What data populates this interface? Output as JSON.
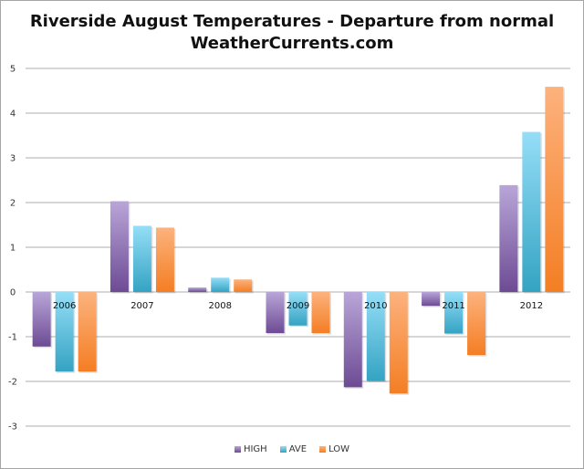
{
  "chart_data": {
    "type": "bar",
    "title": "Riverside August Temperatures - Departure from normal",
    "subtitle": "WeatherCurrents.com",
    "xlabel": "",
    "ylabel": "",
    "ylim": [
      -4,
      5
    ],
    "yticks": [
      5,
      4,
      3,
      2,
      1,
      0,
      -1,
      -2,
      -3
    ],
    "grid": true,
    "legend_position": "bottom",
    "categories": [
      "2006",
      "2007",
      "2008",
      "2009",
      "2010",
      "2011",
      "2012"
    ],
    "series": [
      {
        "name": "HIGH",
        "color_light": "#b9a6d8",
        "color_dark": "#6d4b94",
        "values": [
          -1.22,
          2.03,
          0.1,
          -0.92,
          -2.13,
          -0.31,
          2.39
        ]
      },
      {
        "name": "AVE",
        "color_light": "#95def7",
        "color_dark": "#34a3c3",
        "values": [
          -1.78,
          1.48,
          0.32,
          -0.75,
          -1.99,
          -0.93,
          3.58
        ]
      },
      {
        "name": "LOW",
        "color_light": "#fcb27d",
        "color_dark": "#f47e24",
        "values": [
          -1.78,
          1.44,
          0.28,
          -0.92,
          -2.27,
          -1.41,
          4.59
        ]
      }
    ]
  }
}
